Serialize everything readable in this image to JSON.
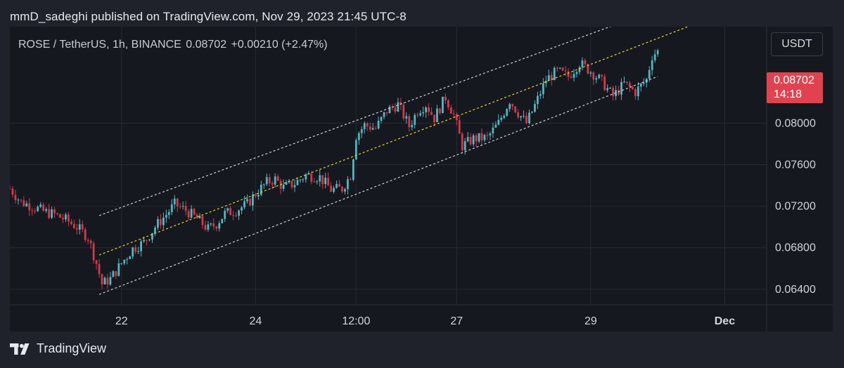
{
  "header": {
    "published_text": "mmD_sadeghi published on TradingView.com, Nov 29, 2023 21:45 UTC-8"
  },
  "symbol_bar": {
    "symbol": "ROSE / TetherUS, 1h, BINANCE",
    "last": "0.08702",
    "change": "+0.00210 (+2.47%)"
  },
  "currency_button": {
    "label": "USDT"
  },
  "price_tag": {
    "price": "0.08702",
    "countdown": "14:18",
    "color": "#e0434f"
  },
  "footer": {
    "brand": "TradingView"
  },
  "colors": {
    "up": "#56b6c2",
    "down": "#d23a4a",
    "channel": "#cfd2da",
    "midline": "#e6d23c",
    "grid": "#262a33"
  },
  "chart_data": {
    "type": "candlestick",
    "x_ticks": [
      {
        "label": "22",
        "t": 8
      },
      {
        "label": "24",
        "t": 56
      },
      {
        "label": "12:00",
        "t": 92
      },
      {
        "label": "27",
        "t": 128
      },
      {
        "label": "29",
        "t": 176
      },
      {
        "label": "Dec",
        "t": 224
      }
    ],
    "y_ticks": [
      "0.08000",
      "0.07600",
      "0.07200",
      "0.06800",
      "0.06400"
    ],
    "ylim": [
      0.0625,
      0.0893
    ],
    "xlim": [
      -32,
      239
    ],
    "grid": true,
    "channel": {
      "lower": {
        "t": [
          0,
          200
        ],
        "v": [
          0.0635,
          0.0845
        ]
      },
      "upper": {
        "t": [
          0,
          200
        ],
        "v": [
          0.0711,
          0.091
        ]
      },
      "mid": {
        "t": [
          0,
          228
        ],
        "v": [
          0.0673,
          0.0911
        ]
      }
    },
    "close_path": [
      [
        -32,
        0.0737
      ],
      [
        -28,
        0.0724
      ],
      [
        -24,
        0.072
      ],
      [
        -20,
        0.0715
      ],
      [
        -16,
        0.0712
      ],
      [
        -12,
        0.0707
      ],
      [
        -8,
        0.07
      ],
      [
        -4,
        0.069
      ],
      [
        -1,
        0.0665
      ],
      [
        1,
        0.0645
      ],
      [
        4,
        0.065
      ],
      [
        8,
        0.0665
      ],
      [
        12,
        0.0679
      ],
      [
        16,
        0.0685
      ],
      [
        20,
        0.07
      ],
      [
        24,
        0.0712
      ],
      [
        27,
        0.0722
      ],
      [
        31,
        0.0716
      ],
      [
        35,
        0.0708
      ],
      [
        39,
        0.0698
      ],
      [
        42,
        0.0703
      ],
      [
        45,
        0.0713
      ],
      [
        49,
        0.0716
      ],
      [
        53,
        0.0722
      ],
      [
        56,
        0.0732
      ],
      [
        60,
        0.0743
      ],
      [
        63,
        0.0746
      ],
      [
        66,
        0.0738
      ],
      [
        70,
        0.0742
      ],
      [
        74,
        0.075
      ],
      [
        79,
        0.0748
      ],
      [
        83,
        0.0736
      ],
      [
        87,
        0.0737
      ],
      [
        90,
        0.075
      ],
      [
        92,
        0.0788
      ],
      [
        95,
        0.0798
      ],
      [
        99,
        0.0795
      ],
      [
        103,
        0.0812
      ],
      [
        107,
        0.0818
      ],
      [
        111,
        0.0797
      ],
      [
        114,
        0.0812
      ],
      [
        117,
        0.0818
      ],
      [
        120,
        0.0805
      ],
      [
        124,
        0.0825
      ],
      [
        127,
        0.0808
      ],
      [
        130,
        0.0778
      ],
      [
        134,
        0.0785
      ],
      [
        139,
        0.0786
      ],
      [
        143,
        0.08
      ],
      [
        147,
        0.0822
      ],
      [
        150,
        0.081
      ],
      [
        153,
        0.08
      ],
      [
        156,
        0.0817
      ],
      [
        160,
        0.0842
      ],
      [
        164,
        0.085
      ],
      [
        168,
        0.0845
      ],
      [
        172,
        0.0858
      ],
      [
        176,
        0.085
      ],
      [
        180,
        0.084
      ],
      [
        184,
        0.0826
      ],
      [
        188,
        0.0838
      ],
      [
        192,
        0.083
      ],
      [
        196,
        0.0842
      ],
      [
        198,
        0.0865
      ],
      [
        200,
        0.087
      ]
    ],
    "last_price": 0.08702
  }
}
